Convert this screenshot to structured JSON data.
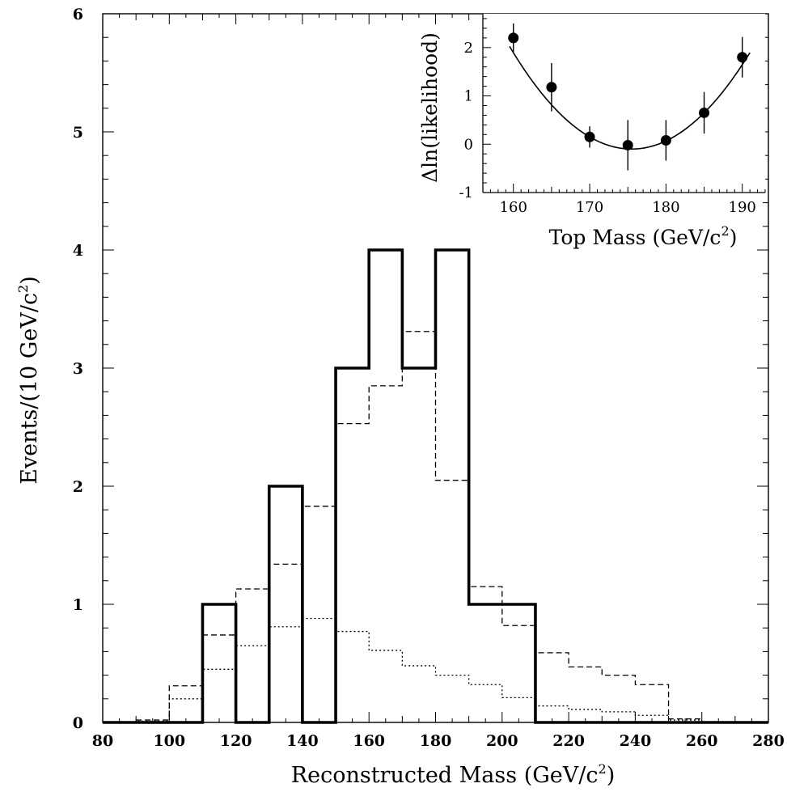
{
  "chart_data": [
    {
      "type": "histogram",
      "title": "",
      "xlabel": "Reconstructed Mass (GeV/c",
      "xlabel_sup": "2",
      "xlabel_tail": ")",
      "ylabel": "Events/(10 GeV/c",
      "ylabel_sup": "2",
      "ylabel_tail": ")",
      "xlim": [
        80,
        280
      ],
      "ylim": [
        0,
        6
      ],
      "x_ticks": [
        80,
        100,
        120,
        140,
        160,
        180,
        200,
        220,
        240,
        260,
        280
      ],
      "y_ticks": [
        0,
        1,
        2,
        3,
        4,
        5,
        6
      ],
      "bin_edges": [
        80,
        90,
        100,
        110,
        120,
        130,
        140,
        150,
        160,
        170,
        180,
        190,
        200,
        210,
        220,
        230,
        240,
        250,
        260,
        270,
        280
      ],
      "series": [
        {
          "style": "solid",
          "values": [
            0,
            0,
            0,
            1,
            0,
            2,
            0,
            3,
            4,
            3,
            4,
            1,
            1,
            0,
            0,
            0,
            0,
            0,
            0,
            0
          ]
        },
        {
          "style": "dashed",
          "values": [
            0,
            0.02,
            0.31,
            0.74,
            1.13,
            1.34,
            1.83,
            2.53,
            2.85,
            3.31,
            2.05,
            1.15,
            0.82,
            0.59,
            0.47,
            0.4,
            0.32,
            0.03,
            0,
            0
          ]
        },
        {
          "style": "dotted",
          "values": [
            0,
            0.01,
            0.2,
            0.45,
            0.65,
            0.81,
            0.88,
            0.77,
            0.61,
            0.48,
            0.4,
            0.32,
            0.21,
            0.14,
            0.11,
            0.09,
            0.06,
            0.02,
            0,
            0
          ]
        }
      ]
    },
    {
      "type": "scatter",
      "title": "",
      "xlabel": "Top Mass (GeV/c",
      "xlabel_sup": "2",
      "xlabel_tail": ")",
      "ylabel": "Δln(likelihood)",
      "xlim": [
        156,
        193
      ],
      "ylim": [
        -1,
        2.7
      ],
      "x_ticks": [
        160,
        170,
        180,
        190
      ],
      "y_ticks": [
        -1,
        0,
        1,
        2
      ],
      "points": [
        {
          "x": 160,
          "y": 2.2,
          "err": 0.3
        },
        {
          "x": 165,
          "y": 1.18,
          "err": 0.5
        },
        {
          "x": 170,
          "y": 0.15,
          "err": 0.22
        },
        {
          "x": 175,
          "y": -0.02,
          "err": 0.52
        },
        {
          "x": 180,
          "y": 0.08,
          "err": 0.42
        },
        {
          "x": 185,
          "y": 0.65,
          "err": 0.43
        },
        {
          "x": 190,
          "y": 1.8,
          "err": 0.42
        }
      ],
      "fit": {
        "type": "parabola",
        "x_min": 175.5,
        "y_min": -0.1,
        "curvature": 0.0083,
        "x_range": [
          159.5,
          191
        ]
      }
    }
  ]
}
